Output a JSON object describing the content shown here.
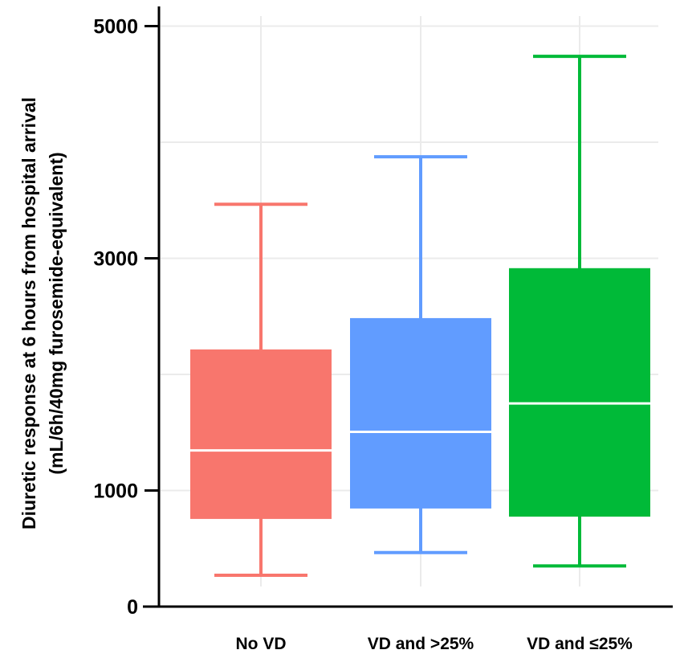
{
  "chart_data": {
    "type": "boxplot",
    "title": "",
    "xlabel": "",
    "ylabel": "Diuretic response at 6 hours from hospital arrival",
    "ylabel_line2": "(mL/6h/40mg furosemide-equivalent)",
    "ylim": [
      0,
      5000
    ],
    "yticks": [
      0,
      1000,
      3000,
      5000
    ],
    "ytick_labels": [
      "0",
      "1000",
      "3000",
      "5000"
    ],
    "grid": true,
    "categories": [
      "No VD",
      "VD and >25%",
      "VD and ≤25%"
    ],
    "series": [
      {
        "category": "No VD",
        "color": "#F8766D",
        "whisker_low": 270,
        "q1": 755,
        "median": 1345,
        "q3": 2215,
        "whisker_high": 3465
      },
      {
        "category": "VD and >25%",
        "color": "#619CFF",
        "whisker_low": 465,
        "q1": 845,
        "median": 1505,
        "q3": 2485,
        "whisker_high": 3875
      },
      {
        "category": "VD and ≤25%",
        "color": "#00BA38",
        "whisker_low": 350,
        "q1": 775,
        "median": 1750,
        "q3": 2915,
        "whisker_high": 4740
      }
    ],
    "median_line_color": "#FFFFFF",
    "grid_color": "#EBEBEB"
  }
}
